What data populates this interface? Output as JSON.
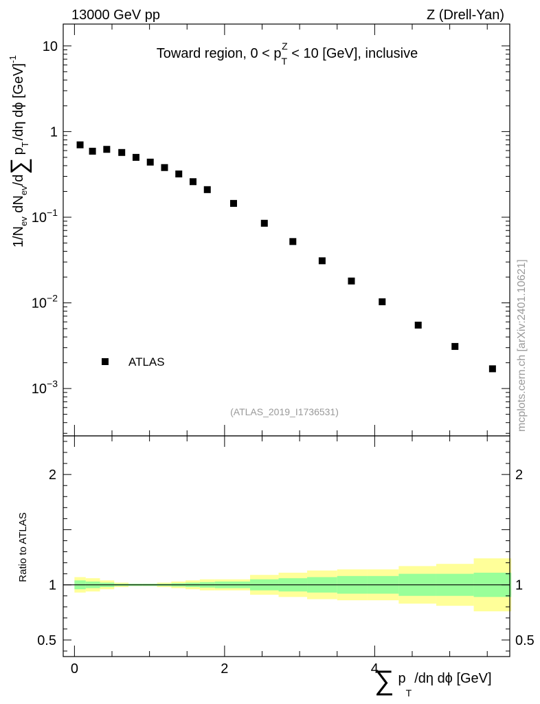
{
  "header": {
    "left": "13000 GeV pp",
    "right": "Z (Drell-Yan)"
  },
  "side_label": "mcplots.cern.ch [arXiv:2401.10621]",
  "chart_data": [
    {
      "type": "scatter",
      "panel": "main",
      "title": {
        "pre": "Toward region, 0 < p",
        "sub": "T",
        "sup": "Z",
        "post": " < 10 [GeV], inclusive"
      },
      "ylabel": {
        "prefix": "1/N",
        "ev1": "ev",
        "mid": " dN",
        "ev2": "ev",
        "mid2": "/d",
        "sum": "∑",
        "p": "p",
        "t": "T",
        "tail": "/dη dϕ  [GeV]",
        "exp": "-1"
      },
      "yscale": "log",
      "ylim": [
        0.00028,
        18
      ],
      "xlim": [
        -0.15,
        5.8
      ],
      "yticks": [
        {
          "value": 0.001,
          "base": "10",
          "exp": "−3"
        },
        {
          "value": 0.01,
          "base": "10",
          "exp": "−2"
        },
        {
          "value": 0.1,
          "base": "10",
          "exp": "−1"
        },
        {
          "value": 1,
          "label": "1"
        },
        {
          "value": 10,
          "label": "10"
        }
      ],
      "annotation": "(ATLAS_2019_I1736531)",
      "legend": {
        "label": "ATLAS",
        "position": "bottom-left"
      },
      "series": [
        {
          "name": "ATLAS",
          "marker": "square",
          "x": [
            0.075,
            0.24,
            0.43,
            0.63,
            0.82,
            1.01,
            1.2,
            1.39,
            1.58,
            1.77,
            2.12,
            2.53,
            2.91,
            3.3,
            3.69,
            4.1,
            4.58,
            5.07,
            5.57
          ],
          "y": [
            0.7,
            0.59,
            0.62,
            0.57,
            0.5,
            0.44,
            0.38,
            0.32,
            0.26,
            0.21,
            0.145,
            0.085,
            0.052,
            0.031,
            0.018,
            0.0103,
            0.0055,
            0.0031,
            0.0017
          ]
        }
      ]
    },
    {
      "type": "area",
      "panel": "ratio",
      "ylabel": "Ratio to ATLAS",
      "xlabel": {
        "sum": "∑",
        "p": "p",
        "t": "T",
        "tail": "/dη dϕ [GeV]"
      },
      "ylim": [
        0.35,
        2.35
      ],
      "xlim": [
        -0.15,
        5.8
      ],
      "yticks": [
        {
          "value": 0.5,
          "label": "0.5"
        },
        {
          "value": 1,
          "label": "1"
        },
        {
          "value": 2,
          "label": "2"
        }
      ],
      "xticks": [
        {
          "value": 0,
          "label": "0"
        },
        {
          "value": 2,
          "label": "2"
        },
        {
          "value": 4,
          "label": "4"
        }
      ],
      "bands": {
        "bins": [
          [
            0.0,
            0.15
          ],
          [
            0.15,
            0.34
          ],
          [
            0.34,
            0.53
          ],
          [
            0.53,
            0.72
          ],
          [
            0.72,
            0.91
          ],
          [
            0.91,
            1.1
          ],
          [
            1.1,
            1.29
          ],
          [
            1.29,
            1.48
          ],
          [
            1.48,
            1.67
          ],
          [
            1.67,
            1.87
          ],
          [
            1.87,
            2.34
          ],
          [
            2.34,
            2.72
          ],
          [
            2.72,
            3.1
          ],
          [
            3.1,
            3.5
          ],
          [
            3.5,
            3.9
          ],
          [
            3.9,
            4.32
          ],
          [
            4.32,
            4.82
          ],
          [
            4.82,
            5.32
          ],
          [
            5.32,
            5.82
          ]
        ],
        "stat_low": [
          0.96,
          0.97,
          0.98,
          0.99,
          0.99,
          0.99,
          0.99,
          0.985,
          0.98,
          0.975,
          0.97,
          0.95,
          0.94,
          0.93,
          0.92,
          0.92,
          0.9,
          0.9,
          0.89
        ],
        "stat_high": [
          1.04,
          1.03,
          1.02,
          1.01,
          1.01,
          1.01,
          1.01,
          1.015,
          1.02,
          1.025,
          1.03,
          1.05,
          1.06,
          1.07,
          1.08,
          1.08,
          1.1,
          1.1,
          1.11
        ],
        "total_low": [
          0.93,
          0.94,
          0.96,
          0.98,
          0.99,
          0.99,
          0.98,
          0.97,
          0.96,
          0.95,
          0.95,
          0.91,
          0.89,
          0.87,
          0.86,
          0.86,
          0.83,
          0.81,
          0.76
        ],
        "total_high": [
          1.07,
          1.06,
          1.04,
          1.02,
          1.01,
          1.01,
          1.02,
          1.03,
          1.04,
          1.05,
          1.05,
          1.09,
          1.11,
          1.13,
          1.14,
          1.14,
          1.17,
          1.19,
          1.24
        ],
        "stat_color": "#99ff99",
        "total_color": "#ffff99"
      }
    }
  ]
}
